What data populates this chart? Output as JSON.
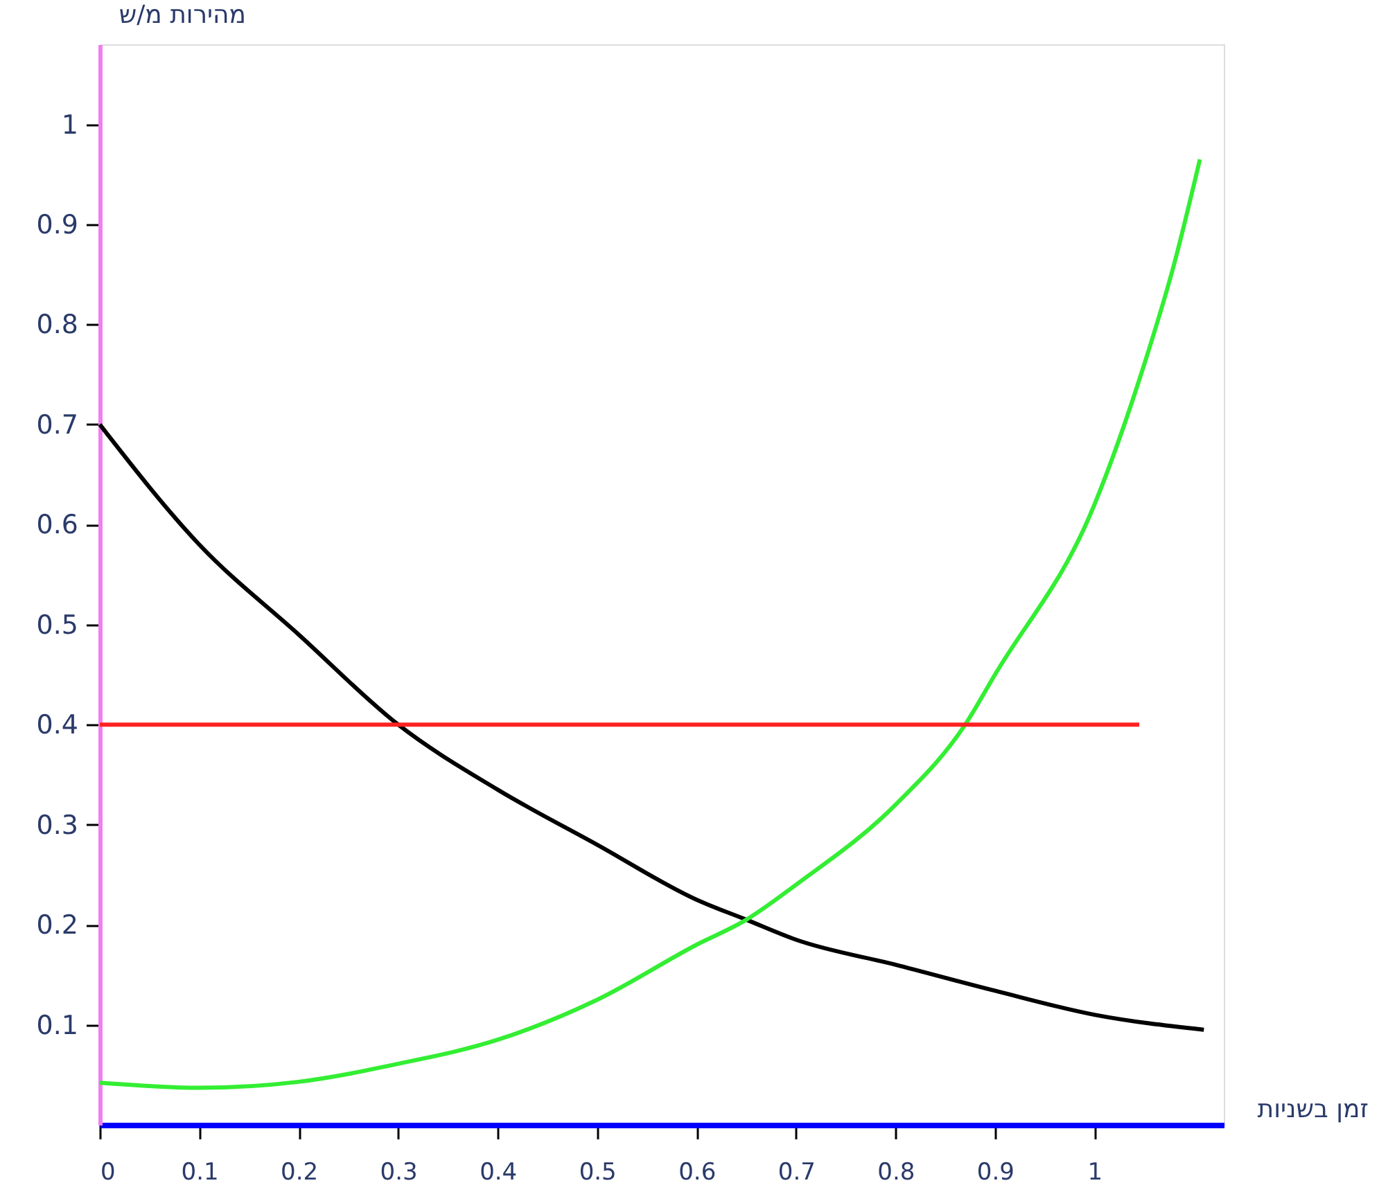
{
  "chart_data": {
    "type": "line",
    "xlabel": "זמן בשניות",
    "ylabel": "מהירות מ/ש",
    "xlim": [
      0,
      1.13
    ],
    "ylim": [
      0,
      1.08
    ],
    "xticks": [
      0,
      0.1,
      0.2,
      0.3,
      0.4,
      0.5,
      0.6,
      0.7,
      0.8,
      0.9,
      1
    ],
    "yticks": [
      0.1,
      0.2,
      0.3,
      0.4,
      0.5,
      0.6,
      0.7,
      0.8,
      0.9,
      1
    ],
    "grid": false,
    "marker": "none",
    "line_style": "solid",
    "series": [
      {
        "color": "#000000",
        "x": [
          0,
          0.1,
          0.2,
          0.3,
          0.4,
          0.5,
          0.6,
          0.65,
          0.7,
          0.8,
          0.9,
          1,
          1.11
        ],
        "values": [
          0.7,
          0.58,
          0.49,
          0.4,
          0.335,
          0.28,
          0.225,
          0.205,
          0.185,
          0.16,
          0.134,
          0.11,
          0.095
        ]
      },
      {
        "color": "#33ee33",
        "x": [
          0,
          0.1,
          0.2,
          0.3,
          0.4,
          0.5,
          0.6,
          0.65,
          0.7,
          0.8,
          0.87,
          0.9,
          1,
          1.05,
          1.08,
          1.106
        ],
        "values": [
          0.042,
          0.037,
          0.043,
          0.061,
          0.085,
          0.125,
          0.18,
          0.205,
          0.24,
          0.32,
          0.4,
          0.45,
          0.62,
          0.76,
          0.86,
          0.965
        ]
      },
      {
        "color": "#ff2222",
        "x": [
          0,
          1.045
        ],
        "values": [
          0.4,
          0.4
        ]
      }
    ]
  }
}
